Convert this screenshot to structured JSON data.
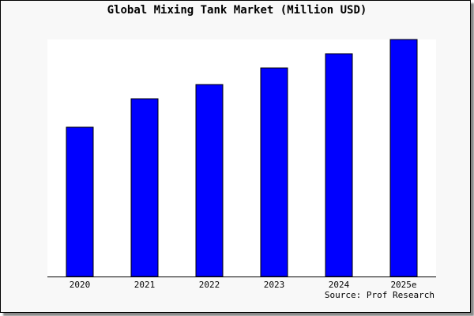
{
  "chart_data": {
    "type": "bar",
    "title": "Global Mixing Tank Market (Million USD)",
    "categories": [
      "2020",
      "2021",
      "2022",
      "2023",
      "2024",
      "2025e"
    ],
    "values": [
      0.63,
      0.75,
      0.81,
      0.88,
      0.94,
      1.0
    ],
    "value_note": "relative bar heights (no y-axis values printed)",
    "xlabel": "",
    "ylabel": "",
    "ylim": [
      0,
      1
    ],
    "grid": false,
    "bar_color": "#0000ff",
    "source": "Source: Prof Research"
  }
}
